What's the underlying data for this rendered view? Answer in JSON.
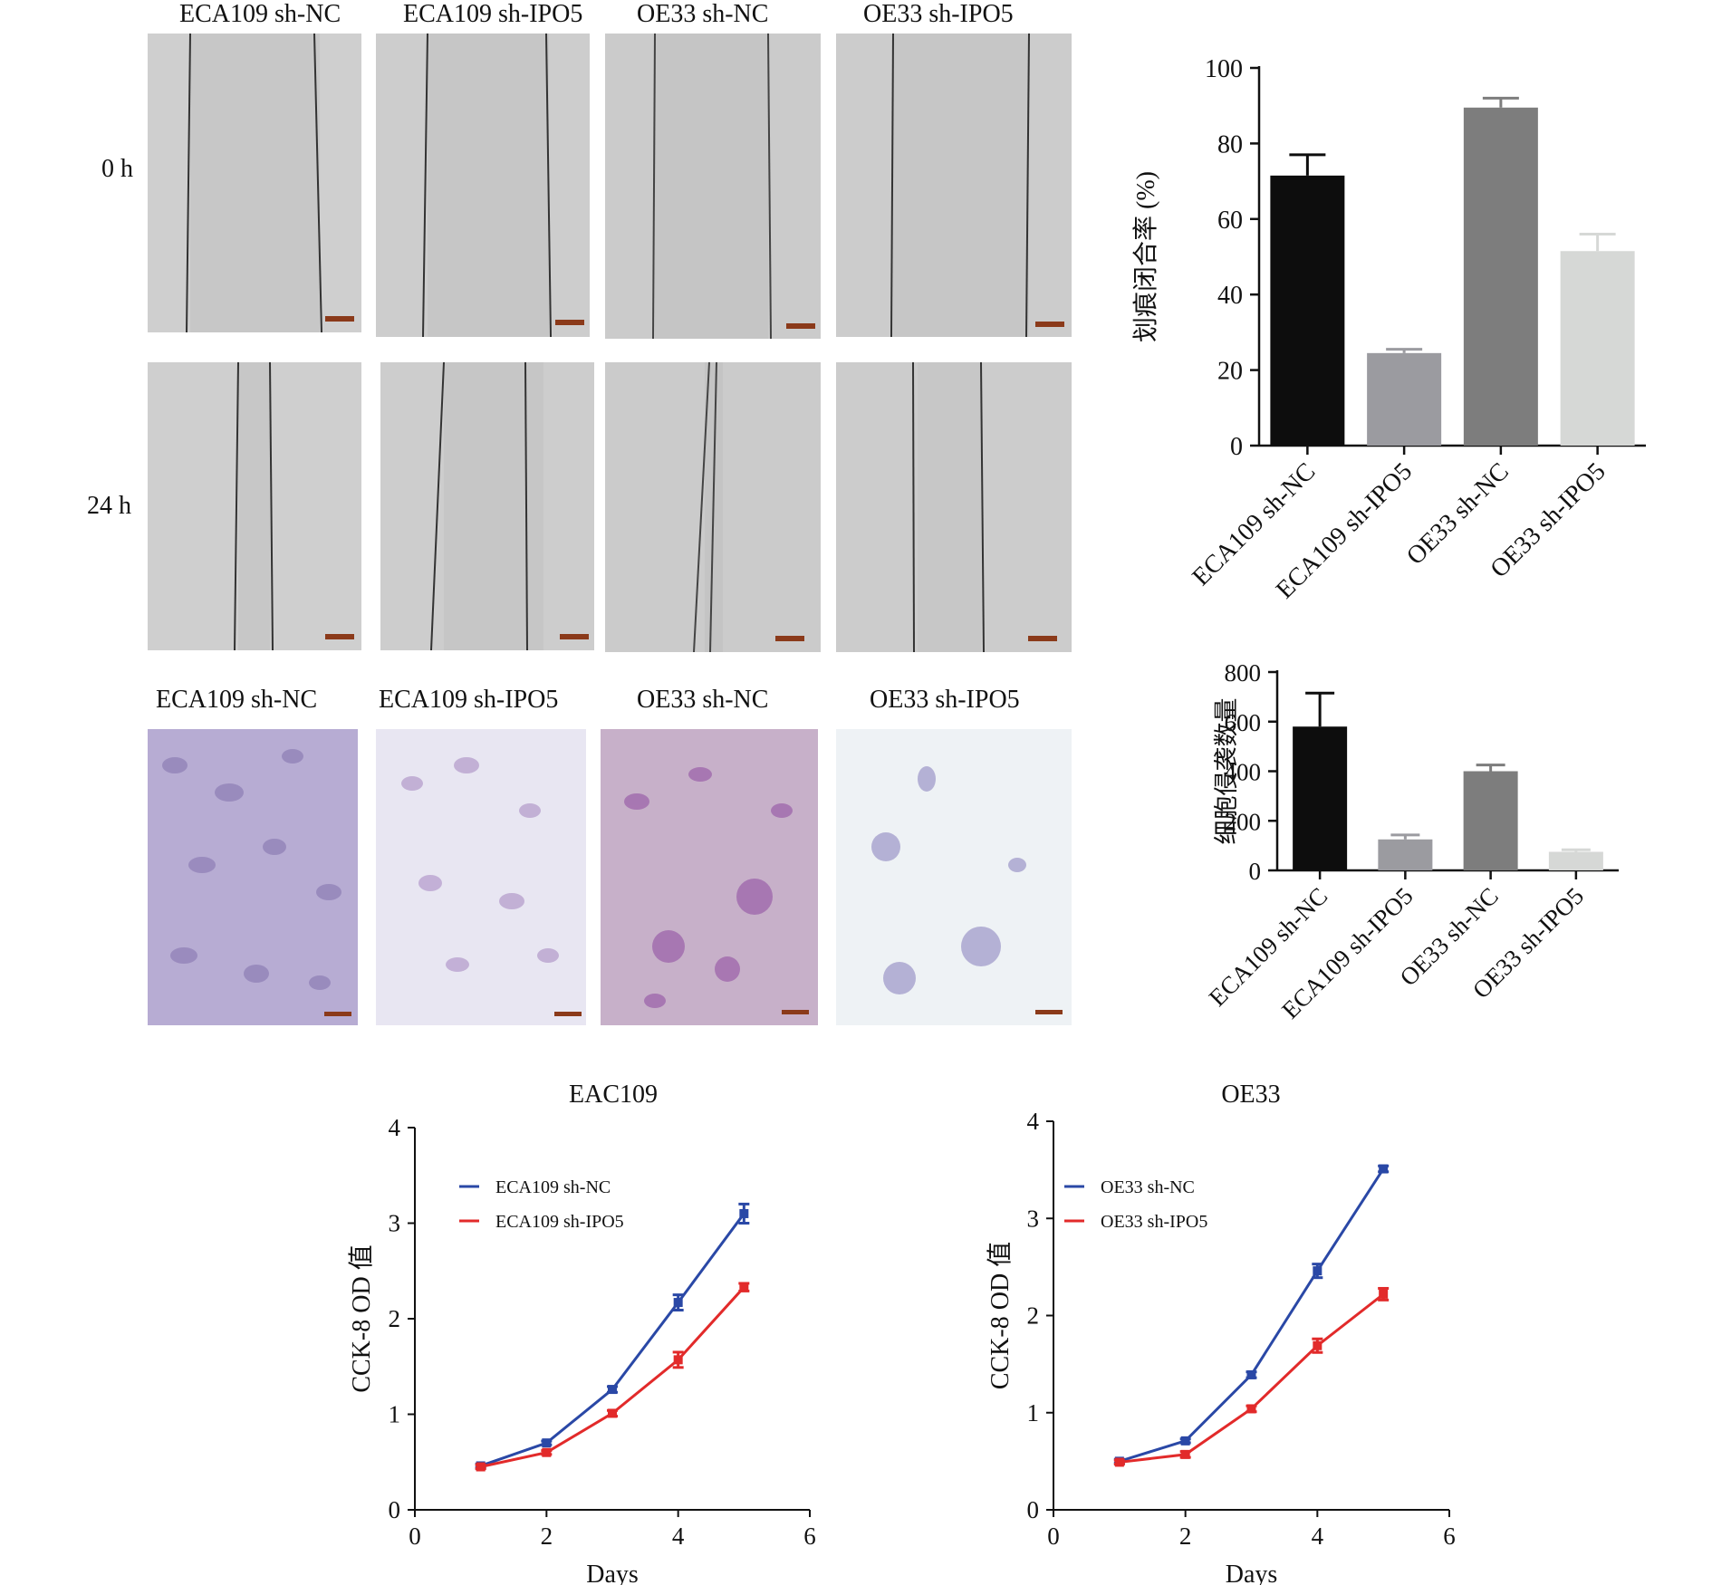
{
  "wound_panel": {
    "column_labels": [
      "ECA109 sh-NC",
      "ECA109 sh-IPO5",
      "OE33 sh-NC",
      "OE33 sh-IPO5"
    ],
    "row_labels": [
      "0 h",
      "24 h"
    ]
  },
  "invasion_panel": {
    "column_labels": [
      "ECA109 sh-NC",
      "ECA109 sh-IPO5",
      "OE33 sh-NC",
      "OE33 sh-IPO5"
    ]
  },
  "chart_data": [
    {
      "type": "bar",
      "id": "wound-closure",
      "categories": [
        "ECA109 sh-NC",
        "ECA109 sh-IPO5",
        "OE33 sh-NC",
        "OE33 sh-IPO5"
      ],
      "values": [
        71.5,
        24.5,
        89.5,
        51.5
      ],
      "errors": [
        5.5,
        1.0,
        2.5,
        4.5
      ],
      "colors": [
        "#0d0d0d",
        "#9b9ba0",
        "#7d7d7d",
        "#d6d8d6"
      ],
      "ylabel": "划痕闭合率 (%)",
      "ylim": [
        0,
        100
      ],
      "yticks": [
        0,
        20,
        40,
        60,
        80,
        100
      ]
    },
    {
      "type": "bar",
      "id": "invasion-count",
      "categories": [
        "ECA109 sh-NC",
        "ECA109 sh-IPO5",
        "OE33 sh-NC",
        "OE33 sh-IPO5"
      ],
      "values": [
        580,
        125,
        400,
        75
      ],
      "errors": [
        135,
        18,
        25,
        8
      ],
      "colors": [
        "#0d0d0d",
        "#9b9ba0",
        "#7d7d7d",
        "#d6d8d6"
      ],
      "ylabel": "细胞侵袭数量",
      "ylim": [
        0,
        800
      ],
      "yticks": [
        0,
        200,
        400,
        600,
        800
      ]
    },
    {
      "type": "line",
      "id": "cck8-eca109",
      "title": "EAC109",
      "xlabel": "Days",
      "ylabel": "CCK-8 OD 值",
      "xlim": [
        0,
        6
      ],
      "ylim": [
        0,
        4
      ],
      "xticks": [
        0,
        2,
        4,
        6
      ],
      "yticks": [
        0,
        1,
        2,
        3,
        4
      ],
      "legend_position": "top-left",
      "series": [
        {
          "name": "ECA109 sh-NC",
          "color": "#2a48a6",
          "x": [
            1,
            2,
            3,
            4,
            5
          ],
          "y": [
            0.46,
            0.7,
            1.26,
            2.17,
            3.1
          ],
          "err": [
            0.02,
            0.02,
            0.03,
            0.08,
            0.1
          ]
        },
        {
          "name": "ECA109 sh-IPO5",
          "color": "#e22a2a",
          "x": [
            1,
            2,
            3,
            4,
            5
          ],
          "y": [
            0.45,
            0.6,
            1.01,
            1.57,
            2.33
          ],
          "err": [
            0.02,
            0.02,
            0.03,
            0.08,
            0.04
          ]
        }
      ]
    },
    {
      "type": "line",
      "id": "cck8-oe33",
      "title": "OE33",
      "xlabel": "Days",
      "ylabel": "CCK-8 OD 值",
      "xlim": [
        0,
        6
      ],
      "ylim": [
        0,
        4
      ],
      "xticks": [
        0,
        2,
        4,
        6
      ],
      "yticks": [
        0,
        1,
        2,
        3,
        4
      ],
      "legend_position": "top-left",
      "series": [
        {
          "name": "OE33 sh-NC",
          "color": "#2a48a6",
          "x": [
            1,
            2,
            3,
            4,
            5
          ],
          "y": [
            0.5,
            0.71,
            1.39,
            2.46,
            3.51
          ],
          "err": [
            0.02,
            0.02,
            0.03,
            0.07,
            0.03
          ]
        },
        {
          "name": "OE33 sh-IPO5",
          "color": "#e22a2a",
          "x": [
            1,
            2,
            3,
            4,
            5
          ],
          "y": [
            0.49,
            0.57,
            1.04,
            1.69,
            2.22
          ],
          "err": [
            0.02,
            0.03,
            0.03,
            0.07,
            0.06
          ]
        }
      ]
    }
  ]
}
